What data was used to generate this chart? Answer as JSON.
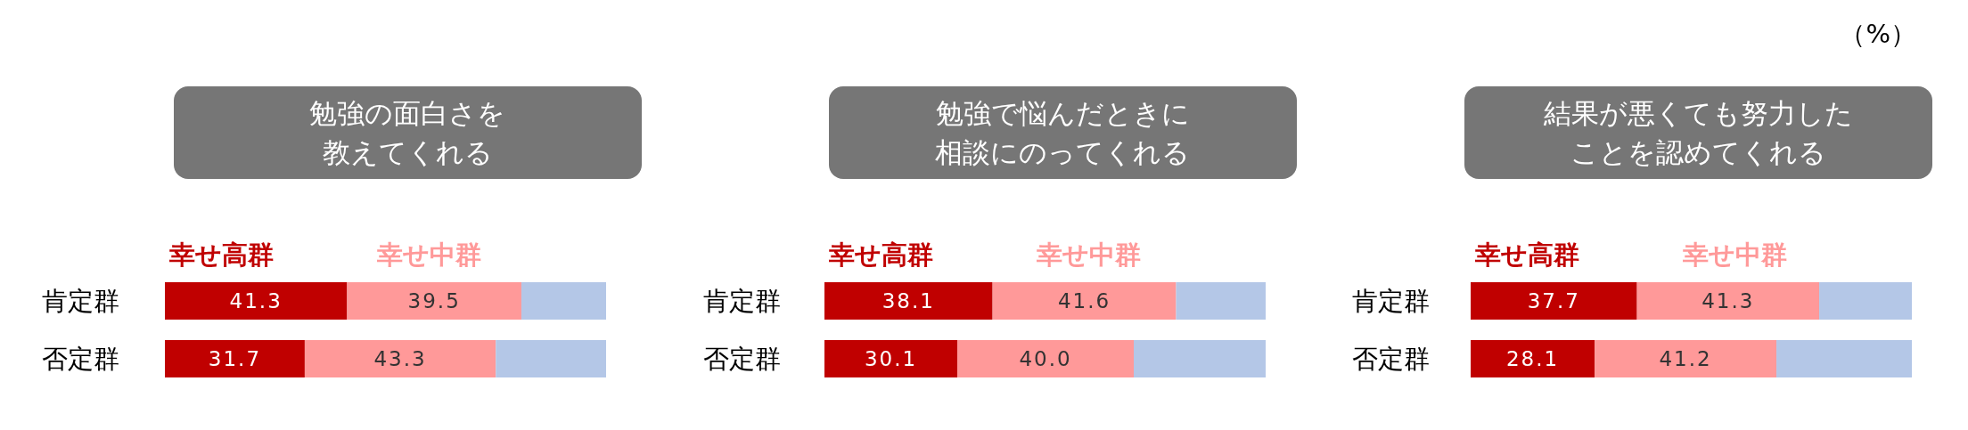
{
  "chart_data": [
    {
      "type": "bar",
      "orientation": "horizontal",
      "stacked": true,
      "title": "勉強の面白さを",
      "subtitle": "教えてくれる",
      "categories": [
        "肯定群",
        "否定群"
      ],
      "series": [
        {
          "name": "幸せ高群",
          "color": "#c00000",
          "values": [
            41.3,
            31.7
          ],
          "value_labels": [
            "41.3",
            "31.7"
          ]
        },
        {
          "name": "幸せ中群",
          "color": "#ff9999",
          "values": [
            39.5,
            43.3
          ],
          "value_labels": [
            "39.5",
            "43.3"
          ]
        },
        {
          "color": "#b4c7e7",
          "values": [
            19.2,
            25.0
          ]
        }
      ],
      "legend": "top"
    },
    {
      "type": "bar",
      "orientation": "horizontal",
      "stacked": true,
      "title": "勉強で悩んだときに",
      "subtitle": "相談にのってくれる",
      "categories": [
        "肯定群",
        "否定群"
      ],
      "series": [
        {
          "name": "幸せ高群",
          "color": "#c00000",
          "values": [
            38.1,
            30.1
          ],
          "value_labels": [
            "38.1",
            "30.1"
          ]
        },
        {
          "name": "幸せ中群",
          "color": "#ff9999",
          "values": [
            41.6,
            40.0
          ],
          "value_labels": [
            "41.6",
            "40.0"
          ]
        },
        {
          "color": "#b4c7e7",
          "values": [
            20.3,
            29.9
          ]
        }
      ],
      "legend": "top"
    },
    {
      "type": "bar",
      "orientation": "horizontal",
      "stacked": true,
      "title": "結果が悪くても努力した",
      "subtitle": "ことを認めてくれる",
      "categories": [
        "肯定群",
        "否定群"
      ],
      "series": [
        {
          "name": "幸せ高群",
          "color": "#c00000",
          "values": [
            37.7,
            28.1
          ],
          "value_labels": [
            "37.7",
            "28.1"
          ]
        },
        {
          "name": "幸せ中群",
          "color": "#ff9999",
          "values": [
            41.3,
            41.2
          ],
          "value_labels": [
            "41.3",
            "41.2"
          ]
        },
        {
          "color": "#b4c7e7",
          "values": [
            21.0,
            30.7
          ]
        }
      ],
      "legend": "top",
      "annotations": [
        "（%）"
      ]
    }
  ]
}
